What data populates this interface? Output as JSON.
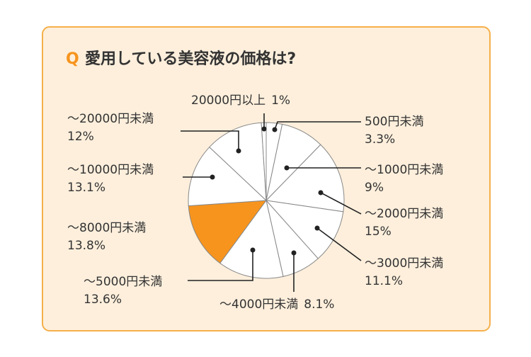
{
  "chart_data": {
    "type": "pie",
    "title_prefix": "Q",
    "title": "愛用している美容液の価格は?",
    "categories": [
      "500円未満",
      "～1000円未満",
      "～2000円未満",
      "～3000円未満",
      "～4000円未満",
      "～5000円未満",
      "～8000円未満",
      "～10000円未満",
      "～20000円未満",
      "20000円以上"
    ],
    "values": [
      3.3,
      9,
      15,
      11.1,
      8.1,
      13.6,
      13.8,
      13.1,
      12,
      1
    ],
    "value_labels": [
      "3.3%",
      "9%",
      "15%",
      "11.1%",
      "8.1%",
      "13.6%",
      "13.8%",
      "13.1%",
      "12%",
      "1%"
    ],
    "colors": [
      "#ffffff",
      "#ffffff",
      "#ffffff",
      "#ffffff",
      "#ffffff",
      "#ffffff",
      "#f7941d",
      "#ffffff",
      "#ffffff",
      "#ffffff"
    ]
  }
}
